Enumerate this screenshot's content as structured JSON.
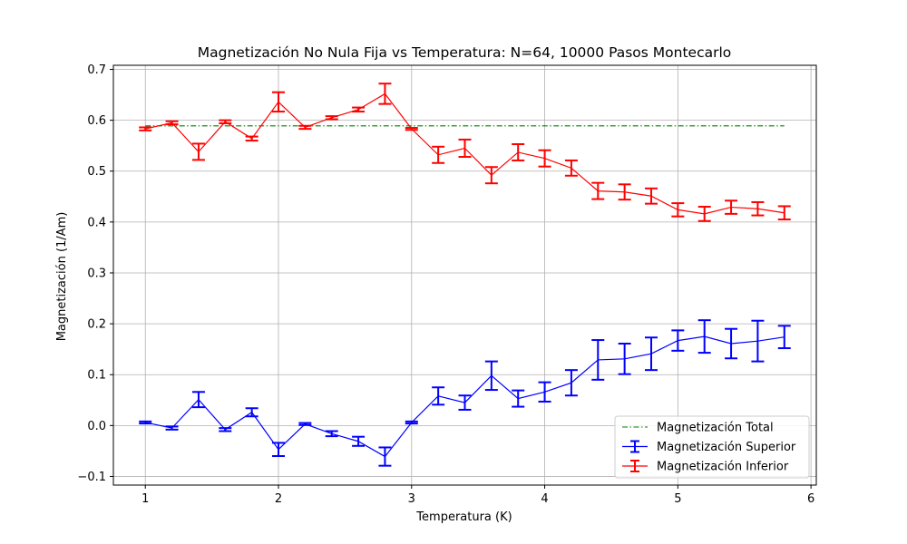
{
  "chart_data": {
    "type": "line",
    "title": "Magnetización No Nula Fija vs Temperatura: N=64, 10000 Pasos Montecarlo",
    "xlabel": "Temperatura (K)",
    "ylabel": "Magnetización (1/Am)",
    "xlim": [
      0.76,
      6.04
    ],
    "ylim": [
      -0.117,
      0.708
    ],
    "xticks": [
      1,
      2,
      3,
      4,
      5,
      6
    ],
    "xtick_labels": [
      "1",
      "2",
      "3",
      "4",
      "5",
      "6"
    ],
    "yticks": [
      -0.1,
      0.0,
      0.1,
      0.2,
      0.3,
      0.4,
      0.5,
      0.6,
      0.7
    ],
    "ytick_labels": [
      "−0.1",
      "0.0",
      "0.1",
      "0.2",
      "0.3",
      "0.4",
      "0.5",
      "0.6",
      "0.7"
    ],
    "grid": true,
    "legend_position": "lower right",
    "x": [
      1.0,
      1.2,
      1.4,
      1.6,
      1.8,
      2.0,
      2.2,
      2.4,
      2.6,
      2.8,
      3.0,
      3.2,
      3.4,
      3.6,
      3.8,
      4.0,
      4.2,
      4.4,
      4.6,
      4.8,
      5.0,
      5.2,
      5.4,
      5.6,
      5.8
    ],
    "series": [
      {
        "name": "Magnetización Total",
        "color": "#008000",
        "style": "dashdot",
        "values": [
          0.589,
          0.589,
          0.589,
          0.589,
          0.589,
          0.589,
          0.589,
          0.589,
          0.589,
          0.589,
          0.589,
          0.589,
          0.589,
          0.589,
          0.589,
          0.589,
          0.589,
          0.589,
          0.589,
          0.589,
          0.589,
          0.589,
          0.589,
          0.589,
          0.589
        ]
      },
      {
        "name": "Magnetización Superior",
        "color": "#0000ff",
        "style": "errorbar",
        "values": [
          0.006,
          -0.005,
          0.051,
          -0.008,
          0.026,
          -0.047,
          0.003,
          -0.016,
          -0.031,
          -0.061,
          0.006,
          0.058,
          0.045,
          0.098,
          0.053,
          0.066,
          0.084,
          0.129,
          0.131,
          0.141,
          0.167,
          0.175,
          0.161,
          0.166,
          0.174
        ],
        "errors": [
          0.002,
          0.003,
          0.015,
          0.003,
          0.008,
          0.013,
          0.002,
          0.005,
          0.009,
          0.018,
          0.002,
          0.017,
          0.014,
          0.028,
          0.016,
          0.019,
          0.025,
          0.039,
          0.03,
          0.032,
          0.02,
          0.032,
          0.029,
          0.04,
          0.022
        ]
      },
      {
        "name": "Magnetización Inferior",
        "color": "#ff0000",
        "style": "errorbar",
        "values": [
          0.583,
          0.595,
          0.538,
          0.597,
          0.564,
          0.636,
          0.586,
          0.605,
          0.621,
          0.652,
          0.583,
          0.532,
          0.545,
          0.492,
          0.537,
          0.525,
          0.506,
          0.461,
          0.459,
          0.451,
          0.424,
          0.416,
          0.429,
          0.426,
          0.418
        ],
        "errors": [
          0.003,
          0.003,
          0.016,
          0.003,
          0.004,
          0.019,
          0.003,
          0.003,
          0.004,
          0.02,
          0.002,
          0.016,
          0.017,
          0.016,
          0.016,
          0.016,
          0.015,
          0.016,
          0.015,
          0.015,
          0.013,
          0.014,
          0.013,
          0.013,
          0.013
        ]
      }
    ]
  }
}
